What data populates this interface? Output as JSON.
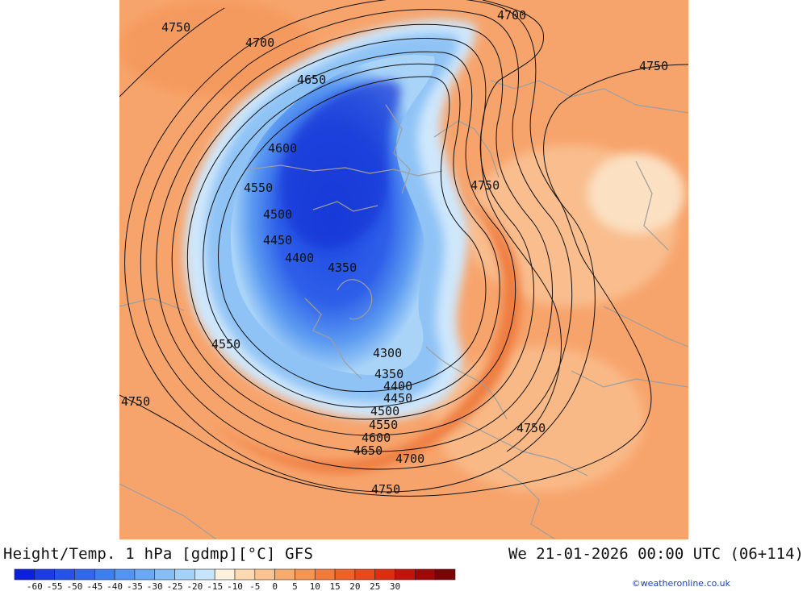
{
  "header": {
    "title": "Height/Temp. 1 hPa [gdmp][°C] GFS",
    "datetime": "We 21-01-2026 00:00 UTC (06+114)"
  },
  "footer": {
    "credit": "©weatheronline.co.uk"
  },
  "colorbar": {
    "tick_labels": [
      "-60",
      "-55",
      "-50",
      "-45",
      "-40",
      "-35",
      "-30",
      "-25",
      "-20",
      "-15",
      "-10",
      "-5",
      "0",
      "5",
      "10",
      "15",
      "20",
      "25",
      "30"
    ],
    "colors": [
      "#0a1fe0",
      "#1b3be6",
      "#2553ea",
      "#2f68ec",
      "#3d7ff0",
      "#5194f2",
      "#68a8f4",
      "#85bdf6",
      "#a3d1f8",
      "#c6e4fb",
      "#fbf1dc",
      "#fcd9b0",
      "#fcc38e",
      "#f8ab6e",
      "#f59553",
      "#f27b3c",
      "#ee6227",
      "#e8481a",
      "#de2d10",
      "#c41409",
      "#a00808",
      "#7a0505"
    ]
  },
  "map": {
    "contour_labels": [
      "4750",
      "4700",
      "4650",
      "4600",
      "4550",
      "4500",
      "4450",
      "4400",
      "4350",
      "4300",
      "4350",
      "4400",
      "4450",
      "4500",
      "4550",
      "4600",
      "4650",
      "4700",
      "4750",
      "4750",
      "4750",
      "4700",
      "4750",
      "4550",
      "4750"
    ],
    "colors": {
      "background": "#f7a46c",
      "warm_band": "#ee7a3e",
      "coldest": "#1c44e0"
    }
  }
}
